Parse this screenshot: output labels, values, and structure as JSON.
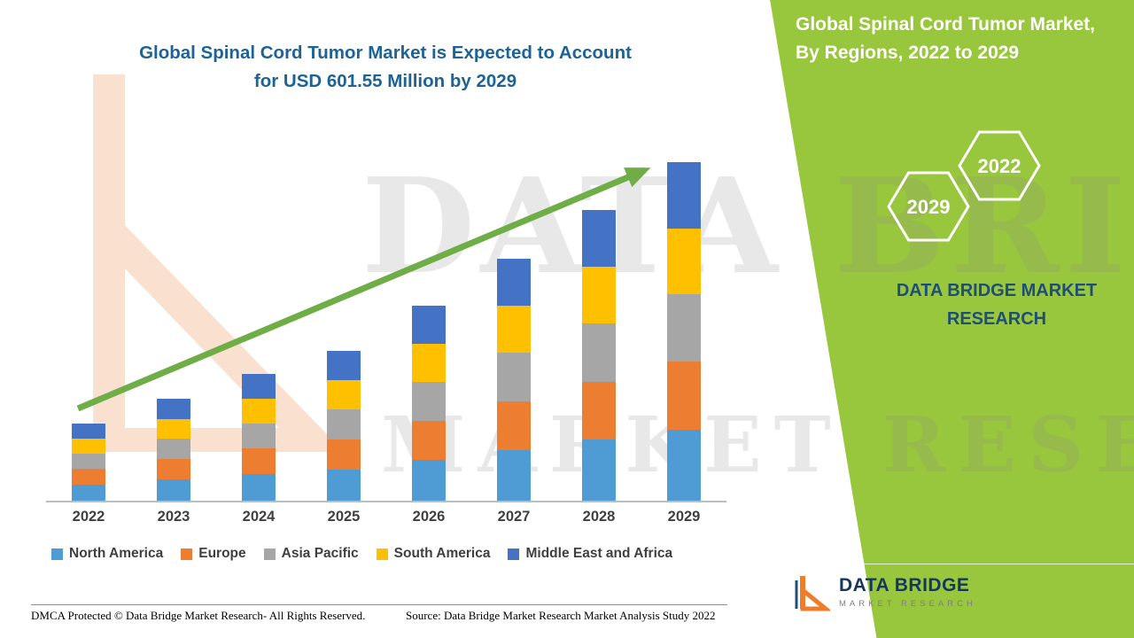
{
  "title": {
    "line1": "Global Spinal Cord Tumor Market is Expected to Account",
    "line2": "for USD 601.55 Million by 2029",
    "color": "#1d6394"
  },
  "panel": {
    "bg_color": "#98c63c",
    "heading_line1": "Global Spinal Cord Tumor Market,",
    "heading_line2": "By Regions, 2022 to 2029",
    "hexagon_left": "2029",
    "hexagon_right": "2022",
    "brand_line1": "DATA BRIDGE MARKET",
    "brand_line2": "RESEARCH"
  },
  "watermark": {
    "line1": "DATA BRIDGE",
    "line2": "MARKET RESEARCH"
  },
  "chart_data": {
    "type": "bar",
    "stacked": true,
    "title": "Global Spinal Cord Tumor Market is Expected to Account for USD 601.55 Million by 2029",
    "value_unit": "USD Million",
    "categories": [
      "2022",
      "2023",
      "2024",
      "2025",
      "2026",
      "2027",
      "2028",
      "2029"
    ],
    "series": [
      {
        "name": "North America",
        "color": "#4e9cd3",
        "values": [
          28.8,
          38.0,
          47.3,
          55.9,
          72.7,
          90.5,
          108.4,
          126.35
        ]
      },
      {
        "name": "Europe",
        "color": "#ed7d31",
        "values": [
          27.4,
          36.2,
          45.0,
          53.2,
          69.2,
          86.2,
          103.2,
          120.3
        ]
      },
      {
        "name": "Asia Pacific",
        "color": "#a6a6a6",
        "values": [
          27.4,
          36.2,
          45.0,
          53.2,
          69.2,
          86.2,
          103.2,
          120.3
        ]
      },
      {
        "name": "South America",
        "color": "#ffc000",
        "values": [
          26.7,
          35.3,
          43.9,
          51.9,
          67.5,
          84.0,
          100.6,
          117.3
        ]
      },
      {
        "name": "Middle East and Africa",
        "color": "#4472c4",
        "values": [
          26.7,
          35.3,
          43.9,
          51.9,
          67.5,
          84.0,
          100.6,
          117.3
        ]
      }
    ],
    "totals": [
      137.0,
      181.0,
      225.1,
      266.1,
      346.1,
      430.9,
      516.0,
      601.55
    ],
    "ylim": [
      0,
      640
    ],
    "axes_hidden": true,
    "grid": false,
    "trend_arrow": true,
    "legend_position": "bottom",
    "arrow_color": "#6fad47"
  },
  "footer": {
    "dmca": "DMCA Protected © Data Bridge Market Research- All Rights Reserved.",
    "source": "Source: Data Bridge Market Research Market Analysis Study 2022",
    "logo_title": "DATA BRIDGE",
    "logo_subtitle": "MARKET RESEARCH"
  }
}
